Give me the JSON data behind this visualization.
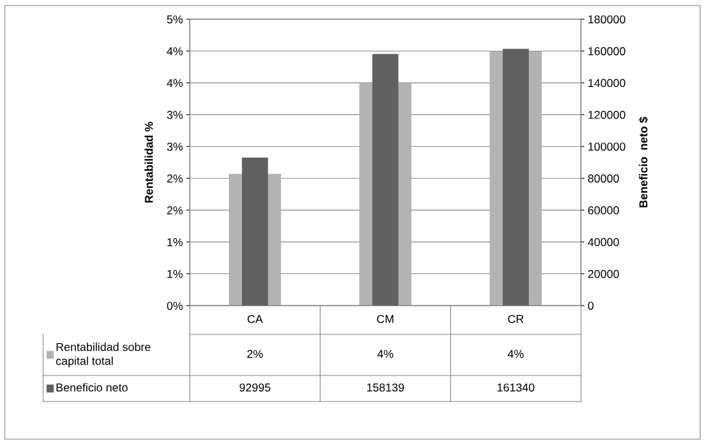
{
  "chart_data": {
    "type": "bar",
    "ylabel": "Rentabilidad %",
    "y2label": "Beneficio  neto $",
    "categories": [
      "CA",
      "CM",
      "CR"
    ],
    "series": [
      {
        "name": "Rentabilidad sobre\ncapital total",
        "color": "#b3b3b3",
        "values": [
          2.07,
          3.5,
          4.0
        ],
        "value_labels": [
          "2%",
          "4%",
          "4%"
        ]
      },
      {
        "name": "Beneficio neto",
        "color": "#606060",
        "values": [
          92995,
          158139,
          161340
        ],
        "axis": "y2",
        "value_labels": [
          "92995",
          "158139",
          "161340"
        ]
      }
    ],
    "ylim": [
      0,
      4.5
    ],
    "yticks": [
      {
        "value": 0,
        "label": "0%"
      },
      {
        "value": 0.5,
        "label": "1%"
      },
      {
        "value": 1,
        "label": "1%"
      },
      {
        "value": 1.5,
        "label": "2%"
      },
      {
        "value": 2,
        "label": "2%"
      },
      {
        "value": 2.5,
        "label": "3%"
      },
      {
        "value": 3,
        "label": "3%"
      },
      {
        "value": 3.5,
        "label": "4%"
      },
      {
        "value": 4,
        "label": "4%"
      },
      {
        "value": 4.5,
        "label": "5%"
      }
    ],
    "y2lim": [
      0,
      180000
    ],
    "y2ticks": [
      0,
      20000,
      40000,
      60000,
      80000,
      100000,
      120000,
      140000,
      160000,
      180000
    ],
    "grid": "y",
    "legend": "bottom"
  }
}
